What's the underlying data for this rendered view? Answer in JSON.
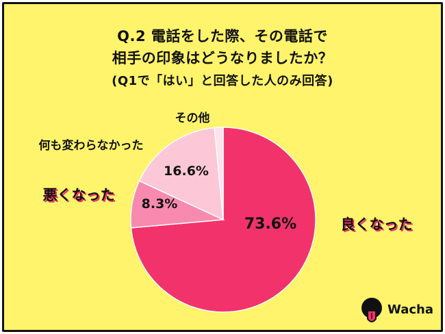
{
  "title": {
    "line1": "Q.2 電話をした際、その電話で",
    "line2": "相手の印象はどうなりましたか？",
    "note": "(Q1で「はい」と回答した人のみ回答)"
  },
  "colors": {
    "background": "#fff46b",
    "good": "#f2336b",
    "bad": "#f78aae",
    "nochange": "#fcc8d8",
    "other": "#fde3ec",
    "text": "#111111"
  },
  "chart_data": {
    "type": "pie",
    "title": "Q.2 電話をした際、その電話で相手の印象はどうなりましたか？",
    "start": "12 o'clock, clockwise",
    "slices": [
      {
        "label": "良くなった",
        "value": 73.6,
        "value_label": "73.6%",
        "color": "#f2336b"
      },
      {
        "label": "悪くなった",
        "value": 8.3,
        "value_label": "8.3%",
        "color": "#f78aae"
      },
      {
        "label": "何も変わらなかった",
        "value": 16.6,
        "value_label": "16.6%",
        "color": "#fcc8d8"
      },
      {
        "label": "その他",
        "value": 1.5,
        "value_label": "",
        "color": "#fde3ec"
      }
    ]
  },
  "logo": {
    "text": "Wacha",
    "icon": "tongue-face-icon"
  }
}
